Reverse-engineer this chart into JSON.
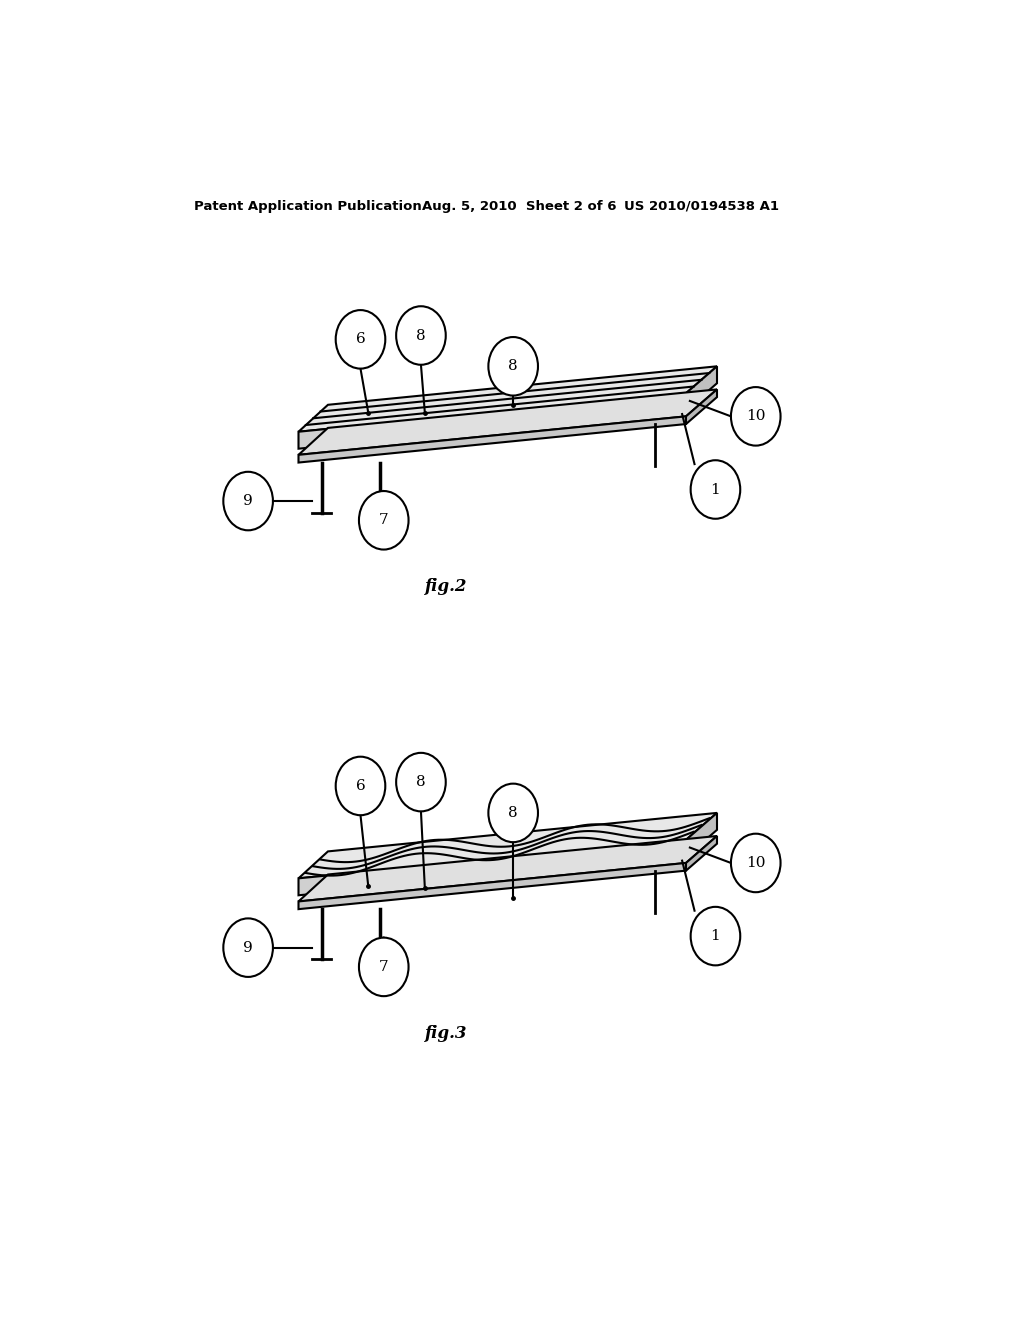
{
  "bg_color": "#ffffff",
  "line_color": "#000000",
  "header_left": "Patent Application Publication",
  "header_mid": "Aug. 5, 2010  Sheet 2 of 6",
  "header_right": "US 2010/0194538 A1",
  "fig2_label": "fig.2",
  "fig3_label": "fig.3",
  "top_surface_color": "#e8e8e8",
  "front_face_color": "#d0d0d0",
  "right_face_color": "#c0c0c0",
  "bottom_slab_color": "#e0e0e0",
  "bottom_front_color": "#c8c8c8"
}
